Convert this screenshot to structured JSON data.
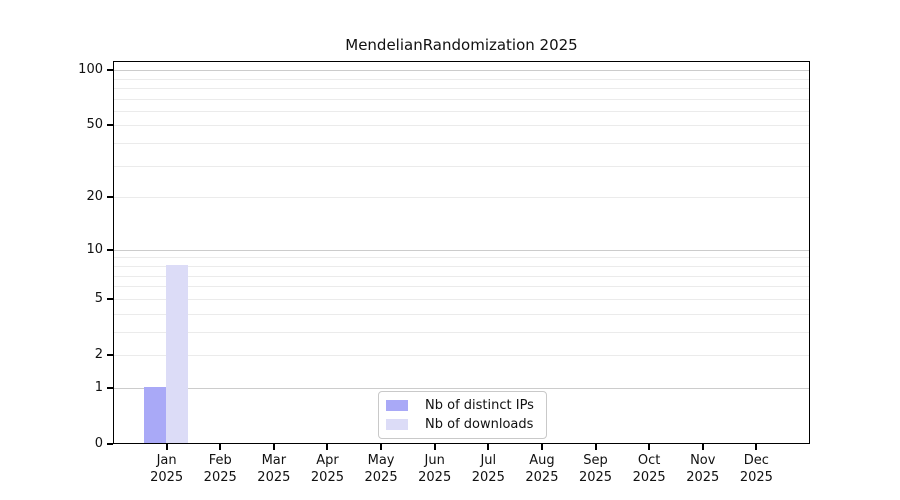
{
  "chart_data": {
    "type": "bar",
    "title": "MendelianRandomization 2025",
    "categories": [
      {
        "label": "Jan",
        "sublabel": "2025"
      },
      {
        "label": "Feb",
        "sublabel": "2025"
      },
      {
        "label": "Mar",
        "sublabel": "2025"
      },
      {
        "label": "Apr",
        "sublabel": "2025"
      },
      {
        "label": "May",
        "sublabel": "2025"
      },
      {
        "label": "Jun",
        "sublabel": "2025"
      },
      {
        "label": "Jul",
        "sublabel": "2025"
      },
      {
        "label": "Aug",
        "sublabel": "2025"
      },
      {
        "label": "Sep",
        "sublabel": "2025"
      },
      {
        "label": "Oct",
        "sublabel": "2025"
      },
      {
        "label": "Nov",
        "sublabel": "2025"
      },
      {
        "label": "Dec",
        "sublabel": "2025"
      }
    ],
    "series": [
      {
        "name": "Nb of distinct IPs",
        "color": "#a9a9f7",
        "values": [
          1,
          0,
          0,
          0,
          0,
          0,
          0,
          0,
          0,
          0,
          0,
          0
        ]
      },
      {
        "name": "Nb of downloads",
        "color": "#dcdcf7",
        "values": [
          8,
          0,
          0,
          0,
          0,
          0,
          0,
          0,
          0,
          0,
          0,
          0
        ]
      }
    ],
    "y_axis": {
      "scale": "log1p",
      "ticks": [
        0,
        1,
        2,
        5,
        10,
        20,
        50,
        100
      ],
      "top_value": 112
    },
    "grid": {
      "major": [
        1,
        10,
        100
      ],
      "minor": [
        2,
        3,
        4,
        5,
        6,
        7,
        8,
        9,
        20,
        30,
        40,
        50,
        60,
        70,
        80,
        90
      ]
    },
    "legend": {
      "position": "bottom-center"
    },
    "colors": {
      "axis": "#000000",
      "grid_major": "#cccccc",
      "grid_minor": "#ebebeb"
    }
  }
}
